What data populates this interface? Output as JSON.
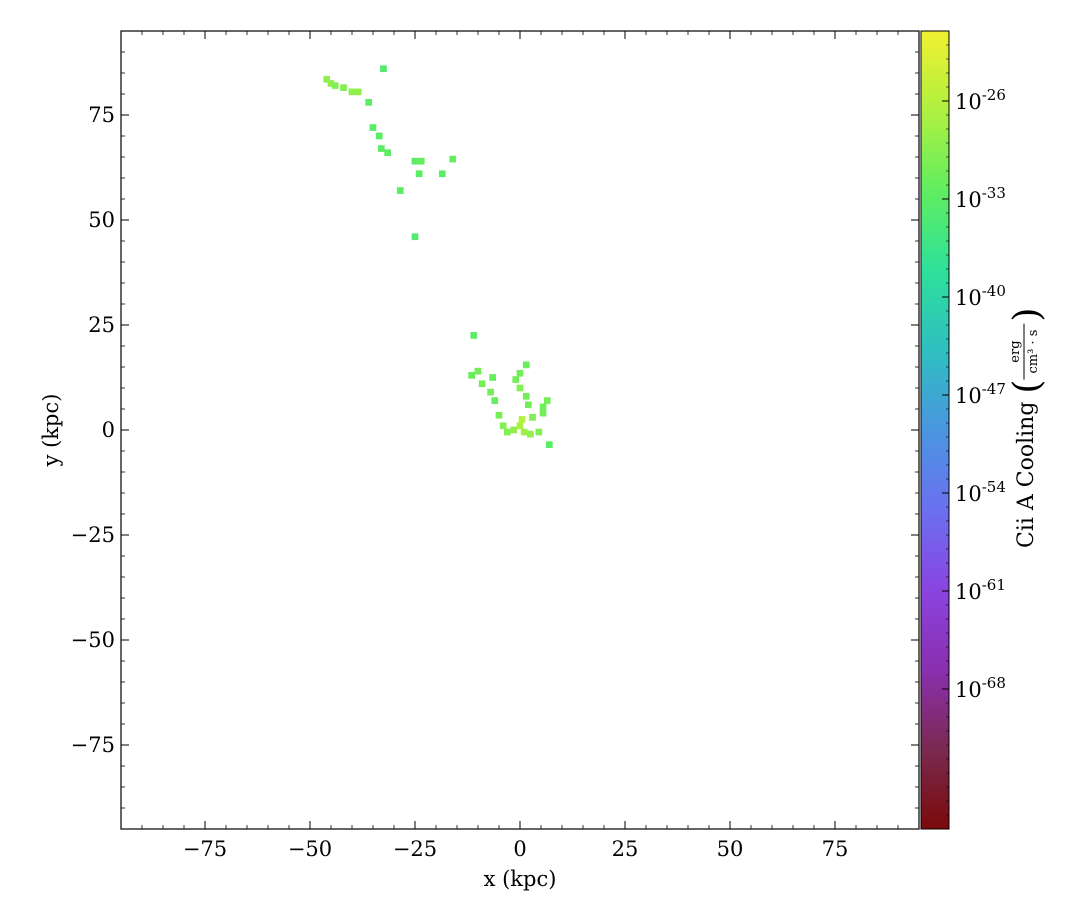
{
  "chart_data": {
    "type": "heatmap",
    "title": "",
    "xlabel": "x  (kpc)",
    "ylabel": "y  (kpc)",
    "xlim": [
      -95,
      95
    ],
    "ylim": [
      -95,
      95
    ],
    "xticks": [
      -75,
      -50,
      -25,
      0,
      25,
      50,
      75
    ],
    "yticks": [
      -75,
      -50,
      -25,
      0,
      25,
      50,
      75
    ],
    "xtick_labels": [
      "−75",
      "−50",
      "−25",
      "0",
      "25",
      "50",
      "75"
    ],
    "ytick_labels": [
      "−75",
      "−50",
      "−25",
      "0",
      "25",
      "50",
      "75"
    ],
    "colorbar": {
      "label_main": "Cii A Cooling",
      "label_unit_num": "erg",
      "label_unit_den": "cm³ · s",
      "scale": "log",
      "log10_range": [
        -78,
        -21
      ],
      "ticks_log10": [
        -26,
        -33,
        -40,
        -47,
        -54,
        -61,
        -68
      ],
      "tick_base": "10",
      "tick_exponents": [
        "-26",
        "-33",
        "-40",
        "-47",
        "-54",
        "-61",
        "-68"
      ],
      "colormap": [
        "#7a0a0a",
        "#7a2a50",
        "#8a2fb0",
        "#8a44e0",
        "#6a70f0",
        "#4a96e0",
        "#2ebfc0",
        "#2ee09a",
        "#60ee60",
        "#b0f040",
        "#f0f030"
      ]
    },
    "cells": [
      {
        "x": -46,
        "y": 83.5,
        "value_log10": -29
      },
      {
        "x": -45,
        "y": 82.5,
        "value_log10": -29
      },
      {
        "x": -44,
        "y": 82,
        "value_log10": -30
      },
      {
        "x": -42,
        "y": 81.5,
        "value_log10": -30
      },
      {
        "x": -40,
        "y": 80.5,
        "value_log10": -29
      },
      {
        "x": -38.5,
        "y": 80.5,
        "value_log10": -29
      },
      {
        "x": -32.5,
        "y": 86,
        "value_log10": -34
      },
      {
        "x": -36,
        "y": 78,
        "value_log10": -33
      },
      {
        "x": -35,
        "y": 72,
        "value_log10": -33
      },
      {
        "x": -33.5,
        "y": 70,
        "value_log10": -33
      },
      {
        "x": -33,
        "y": 67,
        "value_log10": -33
      },
      {
        "x": -31.5,
        "y": 66,
        "value_log10": -33
      },
      {
        "x": -25,
        "y": 64,
        "value_log10": -33
      },
      {
        "x": -23.5,
        "y": 64,
        "value_log10": -32
      },
      {
        "x": -24,
        "y": 61,
        "value_log10": -33
      },
      {
        "x": -16,
        "y": 64.5,
        "value_log10": -32
      },
      {
        "x": -18.5,
        "y": 61,
        "value_log10": -33
      },
      {
        "x": -28.5,
        "y": 57,
        "value_log10": -33
      },
      {
        "x": -25,
        "y": 46,
        "value_log10": -34
      },
      {
        "x": -11,
        "y": 22.5,
        "value_log10": -33
      },
      {
        "x": -11.5,
        "y": 13,
        "value_log10": -32
      },
      {
        "x": -10,
        "y": 14,
        "value_log10": -31
      },
      {
        "x": -9,
        "y": 11,
        "value_log10": -31
      },
      {
        "x": -7,
        "y": 9,
        "value_log10": -31
      },
      {
        "x": -6,
        "y": 7,
        "value_log10": -32
      },
      {
        "x": -6.5,
        "y": 12.5,
        "value_log10": -32
      },
      {
        "x": -5,
        "y": 3.5,
        "value_log10": -31
      },
      {
        "x": -4,
        "y": 1,
        "value_log10": -30
      },
      {
        "x": -3,
        "y": -0.5,
        "value_log10": -30
      },
      {
        "x": -1.5,
        "y": 0,
        "value_log10": -29
      },
      {
        "x": 0,
        "y": 1,
        "value_log10": -27
      },
      {
        "x": 0.5,
        "y": 2.5,
        "value_log10": -26
      },
      {
        "x": 1,
        "y": -0.5,
        "value_log10": -28
      },
      {
        "x": 2.5,
        "y": -1,
        "value_log10": -29
      },
      {
        "x": 4.5,
        "y": -0.5,
        "value_log10": -30
      },
      {
        "x": 5.5,
        "y": 5.5,
        "value_log10": -31
      },
      {
        "x": 5.5,
        "y": 4,
        "value_log10": -31
      },
      {
        "x": 6.5,
        "y": 7,
        "value_log10": -31
      },
      {
        "x": 3,
        "y": 3,
        "value_log10": -30
      },
      {
        "x": 2,
        "y": 6,
        "value_log10": -31
      },
      {
        "x": 1.5,
        "y": 8,
        "value_log10": -31
      },
      {
        "x": 0,
        "y": 10,
        "value_log10": -30
      },
      {
        "x": -1,
        "y": 12,
        "value_log10": -31
      },
      {
        "x": 0,
        "y": 13.5,
        "value_log10": -31
      },
      {
        "x": 1.5,
        "y": 15.5,
        "value_log10": -32
      },
      {
        "x": 7,
        "y": -3.5,
        "value_log10": -33
      }
    ]
  }
}
